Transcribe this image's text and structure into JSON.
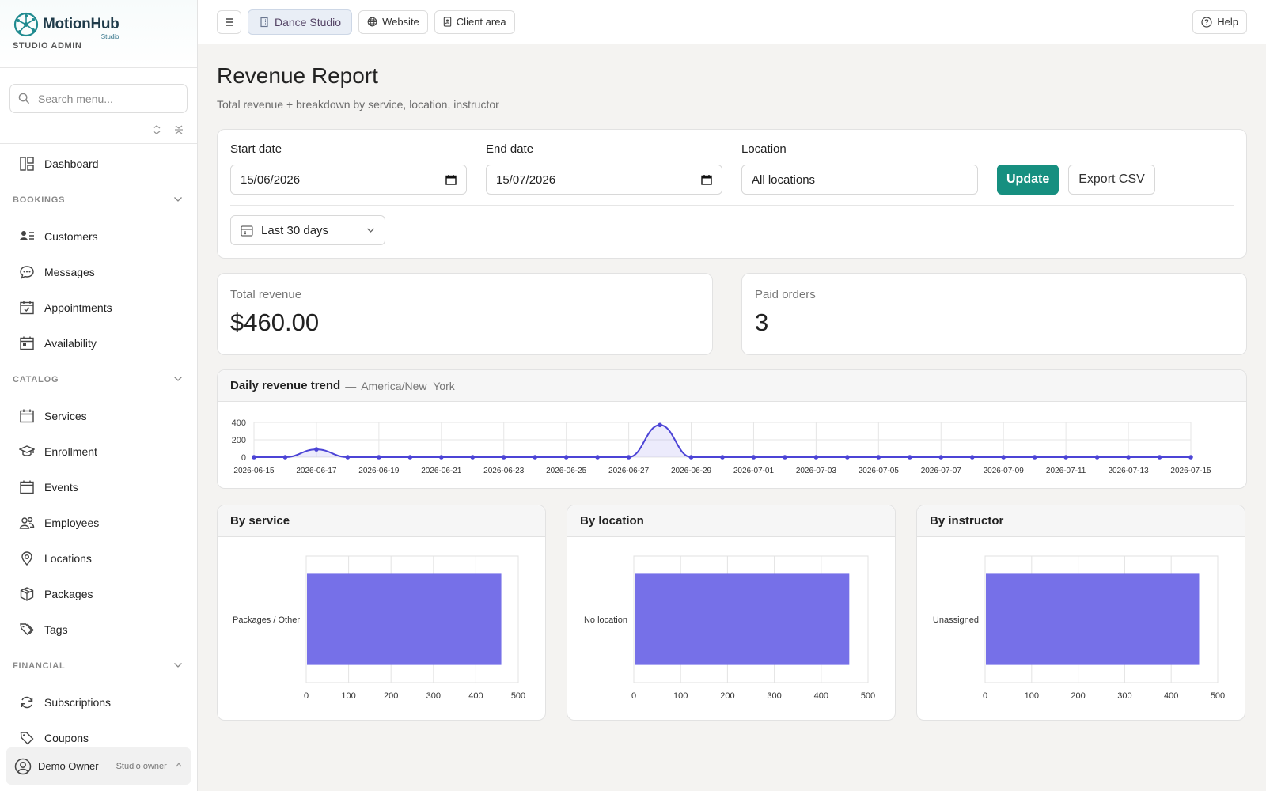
{
  "brand": {
    "name": "MotionHub",
    "sub": "Studio",
    "role": "STUDIO ADMIN"
  },
  "sidebar": {
    "search_placeholder": "Search menu...",
    "items": [
      {
        "label": "Dashboard",
        "icon": "dashboard-icon"
      },
      {
        "section": "BOOKINGS"
      },
      {
        "label": "Customers",
        "icon": "customers-icon"
      },
      {
        "label": "Messages",
        "icon": "messages-icon"
      },
      {
        "label": "Appointments",
        "icon": "calendar-check-icon"
      },
      {
        "label": "Availability",
        "icon": "calendar-grid-icon"
      },
      {
        "section": "CATALOG"
      },
      {
        "label": "Services",
        "icon": "calendar-icon"
      },
      {
        "label": "Enrollment",
        "icon": "graduation-cap-icon"
      },
      {
        "label": "Events",
        "icon": "calendar-icon"
      },
      {
        "label": "Employees",
        "icon": "people-icon"
      },
      {
        "label": "Locations",
        "icon": "location-pin-icon"
      },
      {
        "label": "Packages",
        "icon": "box-icon"
      },
      {
        "label": "Tags",
        "icon": "tags-icon"
      },
      {
        "section": "FINANCIAL"
      },
      {
        "label": "Subscriptions",
        "icon": "refresh-icon"
      },
      {
        "label": "Coupons",
        "icon": "tag-icon"
      }
    ],
    "user": {
      "name": "Demo Owner",
      "role": "Studio owner"
    }
  },
  "topbar": {
    "studio": "Dance Studio",
    "website": "Website",
    "client_area": "Client area",
    "help": "Help"
  },
  "page": {
    "title": "Revenue Report",
    "subtitle": "Total revenue + breakdown by service, location, instructor"
  },
  "filters": {
    "start_label": "Start date",
    "start_value": "15/06/2026",
    "end_label": "End date",
    "end_value": "15/07/2026",
    "location_label": "Location",
    "location_value": "All locations",
    "update_label": "Update",
    "export_label": "Export CSV",
    "range_value": "Last 30 days"
  },
  "stats": {
    "revenue_label": "Total revenue",
    "revenue_value": "$460.00",
    "orders_label": "Paid orders",
    "orders_value": "3"
  },
  "trend": {
    "title": "Daily revenue trend",
    "separator": "—",
    "timezone": "America/New_York"
  },
  "colors": {
    "accent": "#168f80",
    "series": "#4c44d6",
    "bar": "#7670e8"
  },
  "chart_data": [
    {
      "type": "area",
      "title": "Daily revenue trend",
      "x": [
        "2026-06-15",
        "2026-06-16",
        "2026-06-17",
        "2026-06-18",
        "2026-06-19",
        "2026-06-20",
        "2026-06-21",
        "2026-06-22",
        "2026-06-23",
        "2026-06-24",
        "2026-06-25",
        "2026-06-26",
        "2026-06-27",
        "2026-06-28",
        "2026-06-29",
        "2026-06-30",
        "2026-07-01",
        "2026-07-02",
        "2026-07-03",
        "2026-07-04",
        "2026-07-05",
        "2026-07-06",
        "2026-07-07",
        "2026-07-08",
        "2026-07-09",
        "2026-07-10",
        "2026-07-11",
        "2026-07-12",
        "2026-07-13",
        "2026-07-14",
        "2026-07-15"
      ],
      "values": [
        0,
        0,
        90,
        0,
        0,
        0,
        0,
        0,
        0,
        0,
        0,
        0,
        0,
        370,
        0,
        0,
        0,
        0,
        0,
        0,
        0,
        0,
        0,
        0,
        0,
        0,
        0,
        0,
        0,
        0,
        0
      ],
      "x_tick_labels": [
        "2026-06-15",
        "2026-06-17",
        "2026-06-19",
        "2026-06-21",
        "2026-06-23",
        "2026-06-25",
        "2026-06-27",
        "2026-06-29",
        "2026-07-01",
        "2026-07-03",
        "2026-07-05",
        "2026-07-07",
        "2026-07-09",
        "2026-07-11",
        "2026-07-13",
        "2026-07-15"
      ],
      "y_ticks": [
        0,
        200,
        400
      ],
      "ylim": [
        0,
        400
      ],
      "grid": true
    },
    {
      "type": "bar",
      "orientation": "horizontal",
      "title": "By service",
      "categories": [
        "Packages / Other"
      ],
      "values": [
        460
      ],
      "x_ticks": [
        0,
        100,
        200,
        300,
        400,
        500
      ],
      "xlim": [
        0,
        500
      ],
      "grid": true
    },
    {
      "type": "bar",
      "orientation": "horizontal",
      "title": "By location",
      "categories": [
        "No location"
      ],
      "values": [
        460
      ],
      "x_ticks": [
        0,
        100,
        200,
        300,
        400,
        500
      ],
      "xlim": [
        0,
        500
      ],
      "grid": true
    },
    {
      "type": "bar",
      "orientation": "horizontal",
      "title": "By instructor",
      "categories": [
        "Unassigned"
      ],
      "values": [
        460
      ],
      "x_ticks": [
        0,
        100,
        200,
        300,
        400,
        500
      ],
      "xlim": [
        0,
        500
      ],
      "grid": true
    }
  ]
}
